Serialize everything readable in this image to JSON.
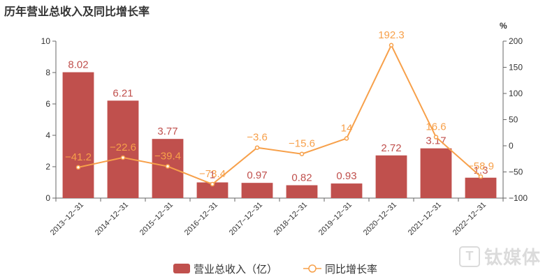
{
  "title": "历年营业总收入及同比增长率",
  "watermark": {
    "icon_letter": "T",
    "text": "钛媒体"
  },
  "colors": {
    "bar": "#c0504d",
    "line": "#f7a04a",
    "axis": "#666666",
    "grid": "#e8e8e8"
  },
  "chart_data": {
    "type": "bar",
    "categories": [
      "2013-12-31",
      "2014-12-31",
      "2015-12-31",
      "2016-12-31",
      "2017-12-31",
      "2018-12-31",
      "2019-12-31",
      "2020-12-31",
      "2021-12-31",
      "2022-12-31"
    ],
    "series": [
      {
        "name": "营业总收入（亿）",
        "type": "bar",
        "axis": "left",
        "values": [
          8.02,
          6.21,
          3.77,
          1.0,
          0.97,
          0.82,
          0.93,
          2.72,
          3.17,
          1.3
        ],
        "labels": [
          "8.02",
          "6.21",
          "3.77",
          "1",
          "0.97",
          "0.82",
          "0.93",
          "2.72",
          "3.17",
          "1.3"
        ]
      },
      {
        "name": "同比增长率",
        "type": "line",
        "axis": "right",
        "values": [
          -41.2,
          -22.6,
          -39.4,
          -73.4,
          -3.6,
          -15.6,
          14,
          192.3,
          16.6,
          -58.9
        ],
        "labels": [
          "-41.2",
          "-22.6",
          "-39.4",
          "-73.4",
          "-3.6",
          "-15.6",
          "14",
          "192.3",
          "16.6",
          "-58.9"
        ]
      }
    ],
    "y_left": {
      "ylim": [
        0,
        10
      ],
      "ticks": [
        "0",
        "2",
        "4",
        "6",
        "8",
        "10"
      ]
    },
    "y_right": {
      "unit": "%",
      "ylim": [
        -100,
        200
      ],
      "ticks": [
        "-100",
        "-50",
        "0",
        "50",
        "100",
        "150",
        "200"
      ]
    },
    "grid": false,
    "legend": "bottom-center"
  }
}
